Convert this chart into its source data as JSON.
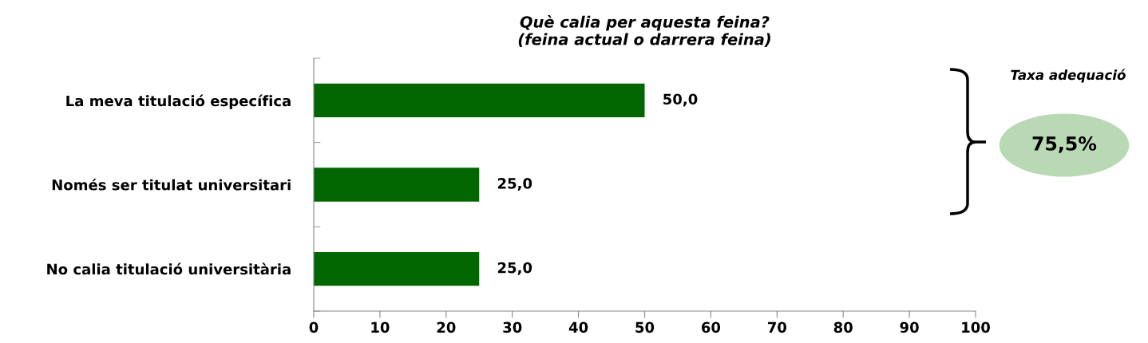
{
  "chart_data": {
    "type": "bar",
    "orientation": "horizontal",
    "title": "Què calia per aquesta feina?\n(feina actual o darrera feina)",
    "categories": [
      "La meva titulació específica",
      "Només ser titulat universitari",
      "No calia titulació universitària"
    ],
    "values": [
      50.0,
      25.0,
      25.0
    ],
    "color": "#006600",
    "value_labels": [
      "50,0",
      "25,0",
      "25,0"
    ],
    "xlim": [
      0,
      100
    ],
    "xticks": [
      0,
      10,
      20,
      30,
      40,
      50,
      60,
      70,
      80,
      90,
      100
    ],
    "grid": false,
    "legend": false,
    "annotations": [
      "Taxa adequació",
      "75,5%"
    ]
  }
}
